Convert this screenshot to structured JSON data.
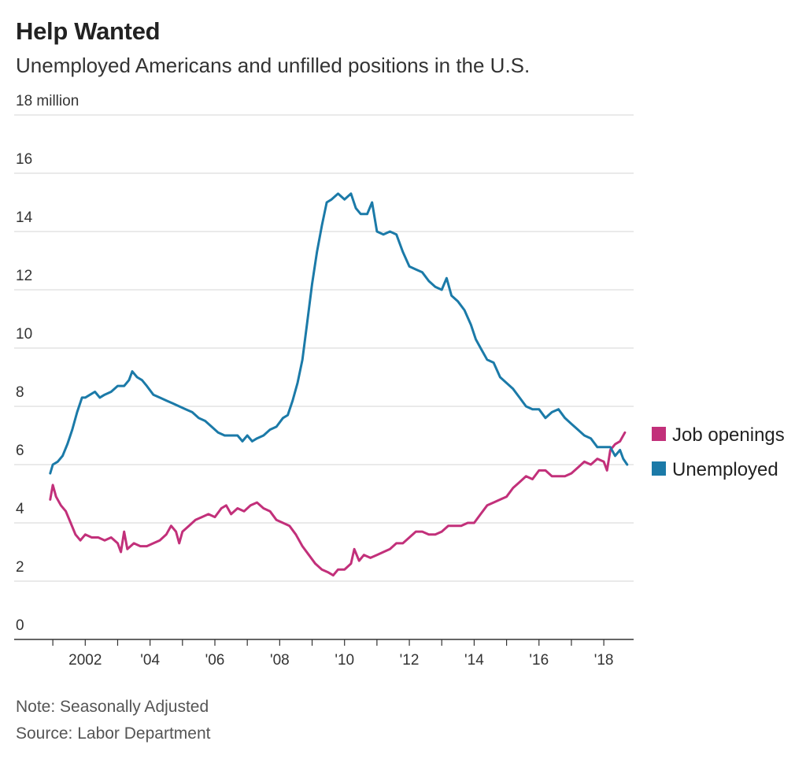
{
  "header": {
    "title": "Help Wanted",
    "subtitle": "Unemployed Americans and unfilled positions in the U.S."
  },
  "footer": {
    "note": "Note: Seasonally Adjusted",
    "source": "Source: Labor Department"
  },
  "colors": {
    "job_openings": "#c2307a",
    "unemployed": "#1b7aa8",
    "grid": "#dddddd",
    "axis": "#333333"
  },
  "chart_data": {
    "type": "line",
    "title": "Help Wanted",
    "subtitle": "Unemployed Americans and unfilled positions in the U.S.",
    "x_range": [
      2000.9,
      2018.75
    ],
    "ylim": [
      0,
      18
    ],
    "yticks": [
      0,
      2,
      4,
      6,
      8,
      10,
      12,
      14,
      16,
      18
    ],
    "ytick_labels": [
      "0",
      "2",
      "4",
      "6",
      "8",
      "10",
      "12",
      "14",
      "16",
      "18 million"
    ],
    "xticks": [
      2002,
      2004,
      2006,
      2008,
      2010,
      2012,
      2014,
      2016,
      2018
    ],
    "xtick_labels": [
      "2002",
      "'04",
      "'06",
      "'08",
      "'10",
      "'12",
      "'14",
      "'16",
      "'18"
    ],
    "grid": true,
    "legend_position": "right",
    "series": [
      {
        "name": "Job openings",
        "color": "#c2307a",
        "points": [
          [
            2000.92,
            4.8
          ],
          [
            2001.0,
            5.3
          ],
          [
            2001.1,
            4.9
          ],
          [
            2001.25,
            4.6
          ],
          [
            2001.4,
            4.4
          ],
          [
            2001.55,
            4.0
          ],
          [
            2001.7,
            3.6
          ],
          [
            2001.85,
            3.4
          ],
          [
            2002.0,
            3.6
          ],
          [
            2002.2,
            3.5
          ],
          [
            2002.4,
            3.5
          ],
          [
            2002.6,
            3.4
          ],
          [
            2002.8,
            3.5
          ],
          [
            2003.0,
            3.3
          ],
          [
            2003.1,
            3.0
          ],
          [
            2003.2,
            3.7
          ],
          [
            2003.3,
            3.1
          ],
          [
            2003.5,
            3.3
          ],
          [
            2003.7,
            3.2
          ],
          [
            2003.9,
            3.2
          ],
          [
            2004.1,
            3.3
          ],
          [
            2004.3,
            3.4
          ],
          [
            2004.5,
            3.6
          ],
          [
            2004.65,
            3.9
          ],
          [
            2004.8,
            3.7
          ],
          [
            2004.9,
            3.3
          ],
          [
            2005.0,
            3.7
          ],
          [
            2005.2,
            3.9
          ],
          [
            2005.4,
            4.1
          ],
          [
            2005.6,
            4.2
          ],
          [
            2005.8,
            4.3
          ],
          [
            2006.0,
            4.2
          ],
          [
            2006.2,
            4.5
          ],
          [
            2006.35,
            4.6
          ],
          [
            2006.5,
            4.3
          ],
          [
            2006.7,
            4.5
          ],
          [
            2006.9,
            4.4
          ],
          [
            2007.1,
            4.6
          ],
          [
            2007.3,
            4.7
          ],
          [
            2007.5,
            4.5
          ],
          [
            2007.7,
            4.4
          ],
          [
            2007.9,
            4.1
          ],
          [
            2008.1,
            4.0
          ],
          [
            2008.3,
            3.9
          ],
          [
            2008.5,
            3.6
          ],
          [
            2008.7,
            3.2
          ],
          [
            2008.9,
            2.9
          ],
          [
            2009.1,
            2.6
          ],
          [
            2009.3,
            2.4
          ],
          [
            2009.5,
            2.3
          ],
          [
            2009.65,
            2.2
          ],
          [
            2009.8,
            2.4
          ],
          [
            2010.0,
            2.4
          ],
          [
            2010.2,
            2.6
          ],
          [
            2010.3,
            3.1
          ],
          [
            2010.45,
            2.7
          ],
          [
            2010.6,
            2.9
          ],
          [
            2010.8,
            2.8
          ],
          [
            2011.0,
            2.9
          ],
          [
            2011.2,
            3.0
          ],
          [
            2011.4,
            3.1
          ],
          [
            2011.6,
            3.3
          ],
          [
            2011.8,
            3.3
          ],
          [
            2012.0,
            3.5
          ],
          [
            2012.2,
            3.7
          ],
          [
            2012.4,
            3.7
          ],
          [
            2012.6,
            3.6
          ],
          [
            2012.8,
            3.6
          ],
          [
            2013.0,
            3.7
          ],
          [
            2013.2,
            3.9
          ],
          [
            2013.4,
            3.9
          ],
          [
            2013.6,
            3.9
          ],
          [
            2013.8,
            4.0
          ],
          [
            2014.0,
            4.0
          ],
          [
            2014.2,
            4.3
          ],
          [
            2014.4,
            4.6
          ],
          [
            2014.6,
            4.7
          ],
          [
            2014.8,
            4.8
          ],
          [
            2015.0,
            4.9
          ],
          [
            2015.2,
            5.2
          ],
          [
            2015.4,
            5.4
          ],
          [
            2015.6,
            5.6
          ],
          [
            2015.8,
            5.5
          ],
          [
            2016.0,
            5.8
          ],
          [
            2016.2,
            5.8
          ],
          [
            2016.4,
            5.6
          ],
          [
            2016.6,
            5.6
          ],
          [
            2016.8,
            5.6
          ],
          [
            2017.0,
            5.7
          ],
          [
            2017.2,
            5.9
          ],
          [
            2017.4,
            6.1
          ],
          [
            2017.6,
            6.0
          ],
          [
            2017.8,
            6.2
          ],
          [
            2018.0,
            6.1
          ],
          [
            2018.1,
            5.8
          ],
          [
            2018.2,
            6.5
          ],
          [
            2018.35,
            6.7
          ],
          [
            2018.5,
            6.8
          ],
          [
            2018.65,
            7.1
          ]
        ]
      },
      {
        "name": "Unemployed",
        "color": "#1b7aa8",
        "points": [
          [
            2000.92,
            5.7
          ],
          [
            2001.0,
            6.0
          ],
          [
            2001.15,
            6.1
          ],
          [
            2001.3,
            6.3
          ],
          [
            2001.45,
            6.7
          ],
          [
            2001.6,
            7.2
          ],
          [
            2001.75,
            7.8
          ],
          [
            2001.9,
            8.3
          ],
          [
            2002.0,
            8.3
          ],
          [
            2002.15,
            8.4
          ],
          [
            2002.3,
            8.5
          ],
          [
            2002.45,
            8.3
          ],
          [
            2002.6,
            8.4
          ],
          [
            2002.8,
            8.5
          ],
          [
            2003.0,
            8.7
          ],
          [
            2003.2,
            8.7
          ],
          [
            2003.35,
            8.9
          ],
          [
            2003.45,
            9.2
          ],
          [
            2003.6,
            9.0
          ],
          [
            2003.75,
            8.9
          ],
          [
            2003.9,
            8.7
          ],
          [
            2004.1,
            8.4
          ],
          [
            2004.3,
            8.3
          ],
          [
            2004.5,
            8.2
          ],
          [
            2004.7,
            8.1
          ],
          [
            2004.9,
            8.0
          ],
          [
            2005.1,
            7.9
          ],
          [
            2005.3,
            7.8
          ],
          [
            2005.5,
            7.6
          ],
          [
            2005.7,
            7.5
          ],
          [
            2005.9,
            7.3
          ],
          [
            2006.1,
            7.1
          ],
          [
            2006.3,
            7.0
          ],
          [
            2006.5,
            7.0
          ],
          [
            2006.7,
            7.0
          ],
          [
            2006.85,
            6.8
          ],
          [
            2007.0,
            7.0
          ],
          [
            2007.15,
            6.8
          ],
          [
            2007.3,
            6.9
          ],
          [
            2007.5,
            7.0
          ],
          [
            2007.7,
            7.2
          ],
          [
            2007.9,
            7.3
          ],
          [
            2008.1,
            7.6
          ],
          [
            2008.25,
            7.7
          ],
          [
            2008.4,
            8.2
          ],
          [
            2008.55,
            8.8
          ],
          [
            2008.7,
            9.6
          ],
          [
            2008.85,
            10.9
          ],
          [
            2009.0,
            12.2
          ],
          [
            2009.15,
            13.3
          ],
          [
            2009.3,
            14.2
          ],
          [
            2009.45,
            15.0
          ],
          [
            2009.6,
            15.1
          ],
          [
            2009.8,
            15.3
          ],
          [
            2010.0,
            15.1
          ],
          [
            2010.2,
            15.3
          ],
          [
            2010.35,
            14.8
          ],
          [
            2010.5,
            14.6
          ],
          [
            2010.7,
            14.6
          ],
          [
            2010.85,
            15.0
          ],
          [
            2011.0,
            14.0
          ],
          [
            2011.2,
            13.9
          ],
          [
            2011.4,
            14.0
          ],
          [
            2011.6,
            13.9
          ],
          [
            2011.8,
            13.3
          ],
          [
            2012.0,
            12.8
          ],
          [
            2012.2,
            12.7
          ],
          [
            2012.4,
            12.6
          ],
          [
            2012.6,
            12.3
          ],
          [
            2012.8,
            12.1
          ],
          [
            2013.0,
            12.0
          ],
          [
            2013.15,
            12.4
          ],
          [
            2013.3,
            11.8
          ],
          [
            2013.5,
            11.6
          ],
          [
            2013.7,
            11.3
          ],
          [
            2013.9,
            10.8
          ],
          [
            2014.05,
            10.3
          ],
          [
            2014.2,
            10.0
          ],
          [
            2014.4,
            9.6
          ],
          [
            2014.6,
            9.5
          ],
          [
            2014.8,
            9.0
          ],
          [
            2015.0,
            8.8
          ],
          [
            2015.2,
            8.6
          ],
          [
            2015.4,
            8.3
          ],
          [
            2015.6,
            8.0
          ],
          [
            2015.8,
            7.9
          ],
          [
            2016.0,
            7.9
          ],
          [
            2016.2,
            7.6
          ],
          [
            2016.4,
            7.8
          ],
          [
            2016.6,
            7.9
          ],
          [
            2016.8,
            7.6
          ],
          [
            2017.0,
            7.4
          ],
          [
            2017.2,
            7.2
          ],
          [
            2017.4,
            7.0
          ],
          [
            2017.6,
            6.9
          ],
          [
            2017.8,
            6.6
          ],
          [
            2018.0,
            6.6
          ],
          [
            2018.2,
            6.6
          ],
          [
            2018.35,
            6.3
          ],
          [
            2018.5,
            6.5
          ],
          [
            2018.6,
            6.2
          ],
          [
            2018.72,
            6.0
          ]
        ]
      }
    ]
  }
}
